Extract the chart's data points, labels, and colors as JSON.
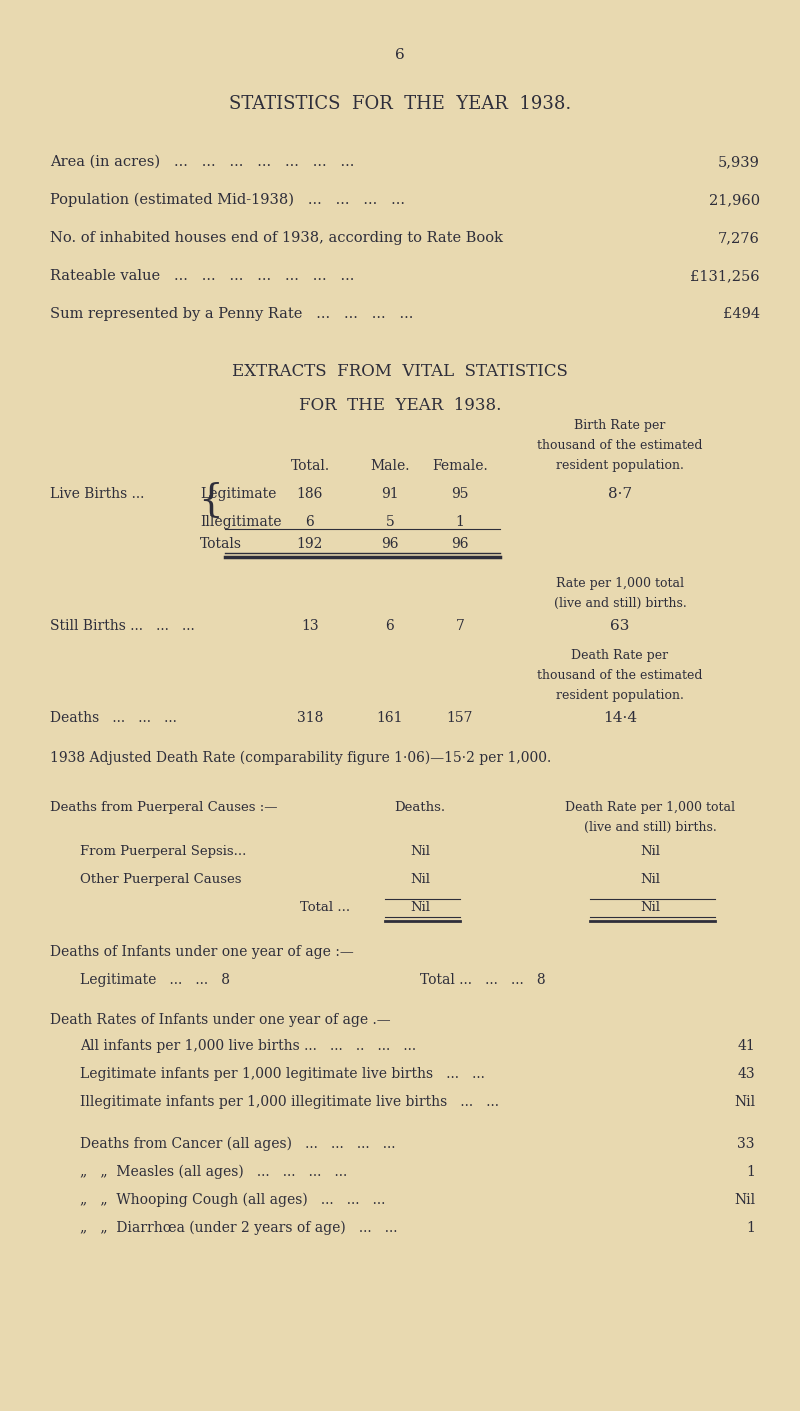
{
  "bg_color": "#e8d9b0",
  "text_color": "#2e2e3a",
  "page_number": "6",
  "title1": "STATISTICS  FOR  THE  YEAR  1938.",
  "stats": [
    {
      "label": "Area (in acres)   ...   ...   ...   ...   ...   ...   ...",
      "value": "5,939"
    },
    {
      "label": "Population (estimated Mid-1938)   ...   ...   ...   ...",
      "value": "21,960"
    },
    {
      "label": "No. of inhabited houses end of 1938, according to Rate Book",
      "value": "7,276"
    },
    {
      "label": "Rateable value   ...   ...   ...   ...   ...   ...   ...",
      "value": "£131,256"
    },
    {
      "label": "Sum represented by a Penny Rate   ...   ...   ...   ...",
      "value": "£494"
    }
  ],
  "title2": "EXTRACTS  FROM  VITAL  STATISTICS",
  "title3": "FOR  THE  YEAR  1938.",
  "lb_legitimate": {
    "label": "Legitimate",
    "total": "186",
    "male": "91",
    "female": "95",
    "rate": "8·7"
  },
  "lb_illegitimate": {
    "label": "Illegitimate",
    "total": "6",
    "male": "5",
    "female": "1"
  },
  "lb_totals": {
    "label": "Totals",
    "total": "192",
    "male": "96",
    "female": "96"
  },
  "still_births": {
    "total": "13",
    "male": "6",
    "female": "7",
    "rate": "63"
  },
  "deaths": {
    "total": "318",
    "male": "161",
    "female": "157",
    "rate": "14·4"
  },
  "adjusted_death_rate": "1938 Adjusted Death Rate (comparability figure 1·06)—15·2 per 1,000.",
  "puerperal_rows": [
    {
      "label": "From Puerperal Sepsis...",
      "deaths": "Nil",
      "rate": "Nil"
    },
    {
      "label": "Other Puerperal Causes",
      "deaths": "Nil",
      "rate": "Nil"
    },
    {
      "label": "Total ...",
      "deaths": "Nil",
      "rate": "Nil"
    }
  ],
  "infant_rate_rows": [
    {
      "label": "All infants per 1,000 live births ...   ...   ..   ...   ...",
      "value": "41"
    },
    {
      "label": "Legitimate infants per 1,000 legitimate live births   ...   ...",
      "value": "43"
    },
    {
      "label": "Illegitimate infants per 1,000 illegitimate live births   ...   ...",
      "value": "Nil"
    }
  ],
  "disease_rows": [
    {
      "label": "Deaths from Cancer (all ages)   ...   ...   ...   ...",
      "value": "33"
    },
    {
      "label": "„   „  Measles (all ages)   ...   ...   ...   ...",
      "value": "1"
    },
    {
      "label": "„   „  Whooping Cough (all ages)   ...   ...   ...",
      "value": "Nil"
    },
    {
      "label": "„   „  Diarrhœa (under 2 years of age)   ...   ...",
      "value": "1"
    }
  ]
}
